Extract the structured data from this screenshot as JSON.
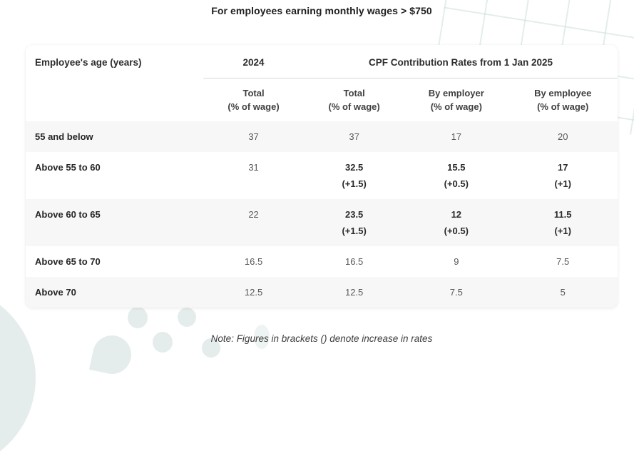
{
  "page": {
    "title": "For employees earning monthly wages > $750",
    "note": "Note: Figures in brackets () denote increase in rates"
  },
  "table": {
    "header": {
      "age": "Employee's age (years)",
      "col_2024": "2024",
      "col_2025": "CPF Contribution Rates from 1 Jan 2025",
      "sub": [
        {
          "label": "Total",
          "unit": "(% of wage)"
        },
        {
          "label": "Total",
          "unit": "(% of wage)"
        },
        {
          "label": "By employer",
          "unit": "(% of wage)"
        },
        {
          "label": "By employee",
          "unit": "(% of wage)"
        }
      ]
    },
    "rows": [
      {
        "age": "55 and below",
        "cells": [
          {
            "v": "37"
          },
          {
            "v": "37"
          },
          {
            "v": "17"
          },
          {
            "v": "20"
          }
        ]
      },
      {
        "age": "Above 55 to 60",
        "cells": [
          {
            "v": "31"
          },
          {
            "v": "32.5",
            "note": "(+1.5)"
          },
          {
            "v": "15.5",
            "note": "(+0.5)"
          },
          {
            "v": "17",
            "note": "(+1)"
          }
        ]
      },
      {
        "age": "Above 60 to 65",
        "cells": [
          {
            "v": "22"
          },
          {
            "v": "23.5",
            "note": "(+1.5)"
          },
          {
            "v": "12",
            "note": "(+0.5)"
          },
          {
            "v": "11.5",
            "note": "(+1)"
          }
        ]
      },
      {
        "age": "Above 65 to 70",
        "cells": [
          {
            "v": "16.5"
          },
          {
            "v": "16.5"
          },
          {
            "v": "9"
          },
          {
            "v": "7.5"
          }
        ]
      },
      {
        "age": "Above 70",
        "cells": [
          {
            "v": "12.5"
          },
          {
            "v": "12.5"
          },
          {
            "v": "7.5"
          },
          {
            "v": "5"
          }
        ]
      }
    ]
  },
  "colors": {
    "shaded_row": "#f7f7f7",
    "header_separator": "#d9d9d9",
    "decor_teal": "#e5edec",
    "title_text": "#1e1e1e",
    "value_text": "#585858"
  }
}
